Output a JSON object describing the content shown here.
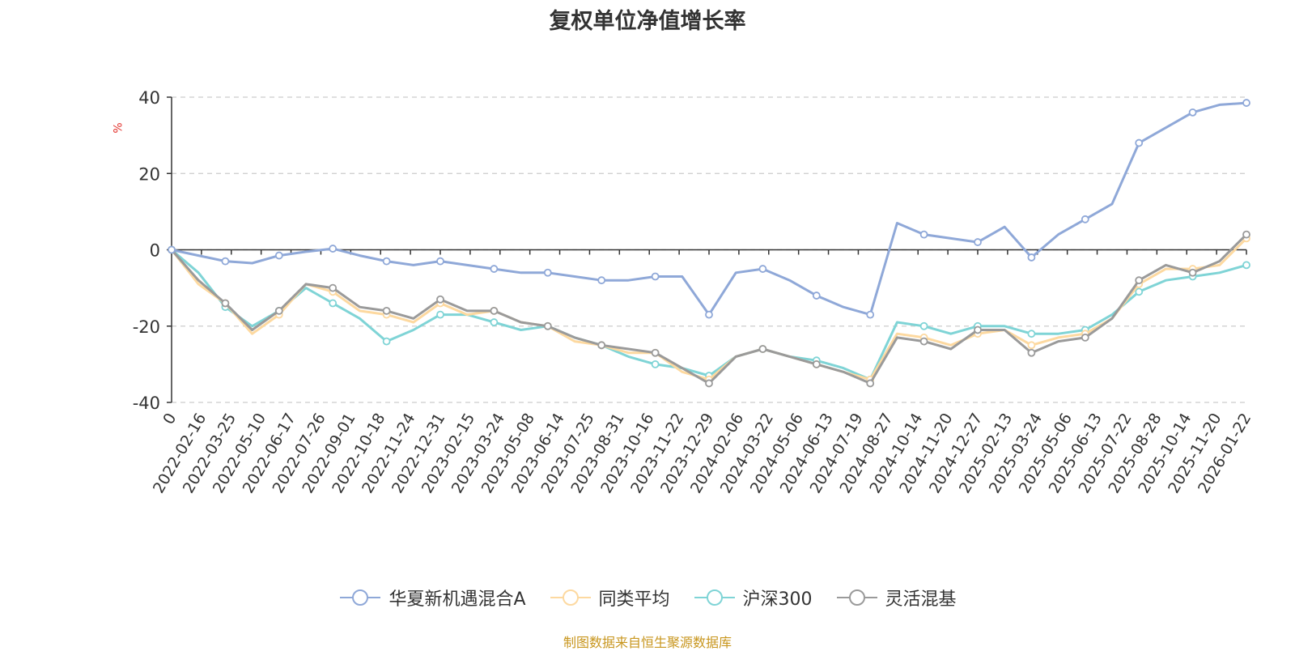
{
  "chart_data": {
    "type": "line",
    "title": "复权单位净值增长率",
    "ylabel": "%",
    "ylim": [
      -40,
      40
    ],
    "yticks": [
      40,
      20,
      0,
      -20,
      -40
    ],
    "x_tick_labels": [
      "0",
      "2022-02-16",
      "2022-03-25",
      "2022-05-10",
      "2022-06-17",
      "2022-07-26",
      "2022-09-01",
      "2022-10-18",
      "2022-11-24",
      "2022-12-31",
      "2023-02-15",
      "2023-03-24",
      "2023-05-08",
      "2023-06-14",
      "2023-07-25",
      "2023-08-31",
      "2023-10-16",
      "2023-11-22",
      "2023-12-29",
      "2024-02-06",
      "2024-03-22",
      "2024-05-06",
      "2024-06-13",
      "2024-07-19",
      "2024-08-27",
      "2024-10-14",
      "2024-11-20",
      "2024-12-27",
      "2025-02-13",
      "2025-03-24",
      "2025-05-06",
      "2025-06-13",
      "2025-07-22",
      "2025-08-28",
      "2025-10-14",
      "2025-11-20",
      "2026-01-22"
    ],
    "series": [
      {
        "name": "华夏新机遇混合A",
        "color": "#8fa8d8",
        "values": [
          0,
          -1.5,
          -3,
          -3.5,
          -1.5,
          -0.5,
          0.3,
          -1.5,
          -3,
          -4,
          -3,
          -4,
          -5,
          -6,
          -6,
          -7,
          -8,
          -8,
          -7,
          -7,
          -17,
          -6,
          -5,
          -8,
          -12,
          -15,
          -17,
          7,
          4,
          3,
          2,
          6,
          -2,
          4,
          8,
          12,
          28,
          32,
          36,
          38,
          38.5
        ]
      },
      {
        "name": "同类平均",
        "color": "#fdd9a0",
        "values": [
          0,
          -9,
          -14,
          -22,
          -17,
          -9,
          -11,
          -16,
          -17,
          -19,
          -14,
          -17,
          -16,
          -19,
          -20,
          -24,
          -25,
          -27,
          -27,
          -32,
          -34,
          -28,
          -26,
          -28,
          -30,
          -32,
          -34,
          -22,
          -23,
          -25,
          -22,
          -21,
          -25,
          -23,
          -22,
          -18,
          -9,
          -5,
          -5,
          -4,
          3
        ]
      },
      {
        "name": "沪深300",
        "color": "#7fd4d6",
        "values": [
          0,
          -6,
          -15,
          -20,
          -16,
          -10,
          -14,
          -18,
          -24,
          -21,
          -17,
          -17,
          -19,
          -21,
          -20,
          -23,
          -25,
          -28,
          -30,
          -31,
          -33,
          -28,
          -26,
          -28,
          -29,
          -31,
          -34,
          -19,
          -20,
          -22,
          -20,
          -20,
          -22,
          -22,
          -21,
          -17,
          -11,
          -8,
          -7,
          -6,
          -4
        ]
      },
      {
        "name": "灵活混基",
        "color": "#9a9a9a",
        "values": [
          0,
          -8,
          -14,
          -21,
          -16,
          -9,
          -10,
          -15,
          -16,
          -18,
          -13,
          -16,
          -16,
          -19,
          -20,
          -23,
          -25,
          -26,
          -27,
          -31,
          -35,
          -28,
          -26,
          -28,
          -30,
          -32,
          -35,
          -23,
          -24,
          -26,
          -21,
          -21,
          -27,
          -24,
          -23,
          -18,
          -8,
          -4,
          -6,
          -3,
          4
        ]
      }
    ],
    "legend": [
      "华夏新机遇混合A",
      "同类平均",
      "沪深300",
      "灵活混基"
    ],
    "legend_position": "bottom",
    "grid": true
  },
  "source_text": "制图数据来自恒生聚源数据库"
}
